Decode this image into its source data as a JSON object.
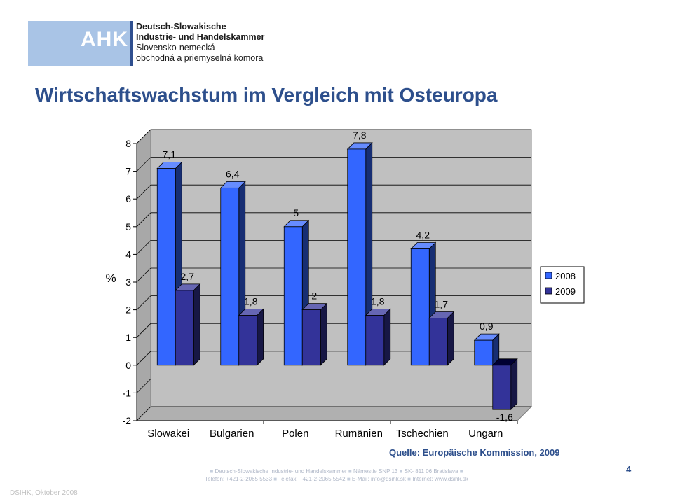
{
  "logo": {
    "ahk": "AHK",
    "line1": "Deutsch-Slowakische",
    "line2": "Industrie- und Handelskammer",
    "line3": "Slovensko-nemecká",
    "line4": "obchodná a priemyselná komora"
  },
  "title": "Wirtschaftswachstum im Vergleich mit Osteuropa",
  "source": "Quelle: Europäische Kommission, 2009",
  "page_number": "4",
  "footer": {
    "parts_line1": [
      "Deutsch-Slowakische Industrie- und Handelskammer",
      "Námestie SNP 13",
      "SK- 811 06 Bratislava"
    ],
    "parts_line2": [
      "Telefon: +421-2-2065 5533",
      "Telefax: +421-2-2065 5542",
      "E-Mail: info@dsihk.sk",
      "Internet: www.dsihk.sk"
    ]
  },
  "date_note": "DSIHK, Oktober 2008",
  "chart_data": {
    "type": "bar",
    "categories": [
      "Slowakei",
      "Bulgarien",
      "Polen",
      "Rumänien",
      "Tschechien",
      "Ungarn"
    ],
    "series": [
      {
        "name": "2008",
        "values": [
          7.1,
          6.4,
          5,
          7.8,
          4.2,
          0.9
        ],
        "labels": [
          "7,1",
          "6,4",
          "5",
          "7,8",
          "4,2",
          "0,9"
        ],
        "color": "#3366ff"
      },
      {
        "name": "2009",
        "values": [
          2.7,
          1.8,
          2,
          1.8,
          1.7,
          -1.6
        ],
        "labels": [
          "2,7",
          "1,8",
          "2",
          "1,8",
          "1,7",
          "-1,6"
        ],
        "color": "#333399"
      }
    ],
    "ylabel": "%",
    "ylim": [
      -2,
      8
    ],
    "yticks": [
      "-2",
      "-1",
      "0",
      "1",
      "2",
      "3",
      "4",
      "5",
      "6",
      "7",
      "8"
    ],
    "grid": true,
    "legend": "right",
    "background": "#c0c0c0"
  }
}
